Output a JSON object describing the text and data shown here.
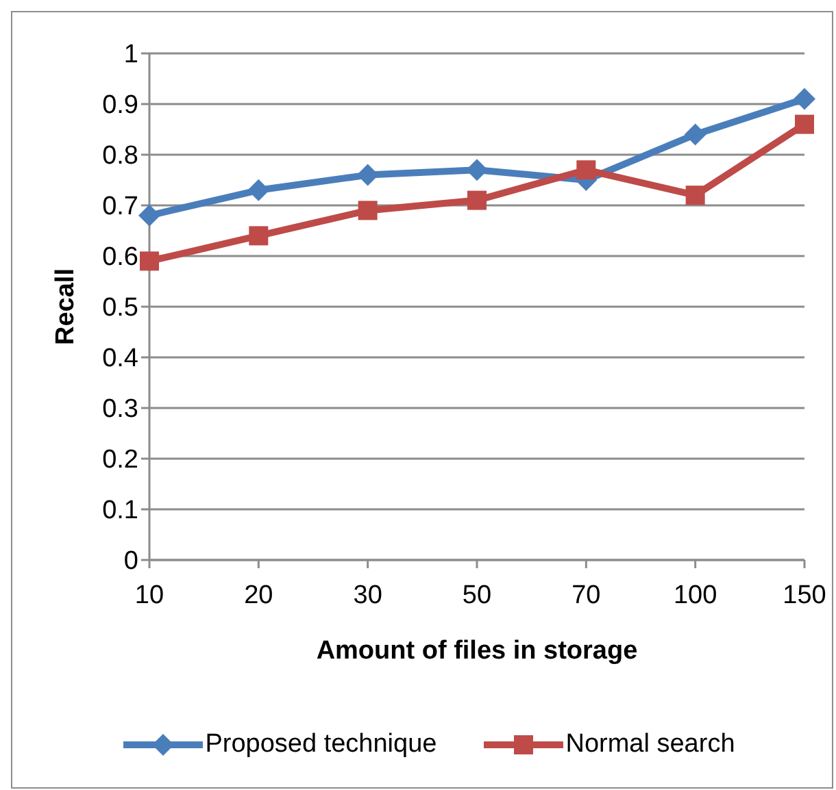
{
  "chart_data": {
    "type": "line",
    "xlabel": "Amount of files in storage",
    "ylabel": "Recall",
    "categories": [
      "10",
      "20",
      "30",
      "50",
      "70",
      "100",
      "150"
    ],
    "series": [
      {
        "name": "Proposed technique",
        "color": "#4a7ebb",
        "marker": "diamond",
        "values": [
          0.68,
          0.73,
          0.76,
          0.77,
          0.75,
          0.84,
          0.91
        ]
      },
      {
        "name": "Normal search",
        "color": "#be4b48",
        "marker": "square",
        "values": [
          0.59,
          0.64,
          0.69,
          0.71,
          0.77,
          0.72,
          0.86
        ]
      }
    ],
    "ylim": [
      0,
      1
    ],
    "yticks": [
      0,
      0.1,
      0.2,
      0.3,
      0.4,
      0.5,
      0.6,
      0.7,
      0.8,
      0.9,
      1
    ],
    "grid": "y",
    "legend": "bottom"
  }
}
